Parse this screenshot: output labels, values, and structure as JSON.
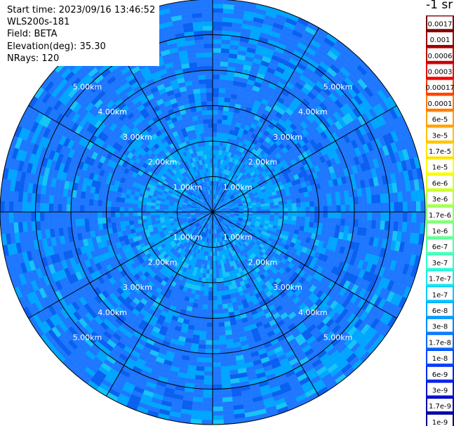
{
  "header": {
    "start_time": "Start time: 2023/09/16 13:46:52",
    "instrument": "WLS200s-181",
    "field": "Field: BETA",
    "elevation": "Elevation(deg): 35.30",
    "nrays": "NRays: 120"
  },
  "chart_data": {
    "type": "heatmap",
    "projection": "polar-ppi",
    "field": "BETA",
    "elevation_deg": 35.3,
    "nrays": 120,
    "range_ring_labels": [
      "1.00km",
      "2.00km",
      "3.00km",
      "4.00km",
      "5.00km"
    ],
    "range_rings_km": [
      1,
      2,
      3,
      4,
      5
    ],
    "max_range_km": 6,
    "spokes": 12,
    "colorbar": {
      "unit_label": "-1 sr",
      "ticks": [
        "0.0017",
        "0.001",
        "0.0006",
        "0.0003",
        "0.00017",
        "0.0001",
        "6e-5",
        "3e-5",
        "1.7e-5",
        "1e-5",
        "6e-6",
        "3e-6",
        "1.7e-6",
        "1e-6",
        "6e-7",
        "3e-7",
        "1.7e-7",
        "1e-7",
        "6e-8",
        "3e-8",
        "1.7e-8",
        "1e-8",
        "6e-9",
        "3e-9",
        "1.7e-9",
        "1e-9"
      ],
      "colors": [
        "#7a0000",
        "#9a0000",
        "#c40000",
        "#f00000",
        "#ff3a00",
        "#ff7a00",
        "#ffa000",
        "#ffc200",
        "#ffe000",
        "#fbff00",
        "#d8ff1e",
        "#b0ff4c",
        "#8cff70",
        "#6dff8c",
        "#4dffac",
        "#2effcc",
        "#17e8ec",
        "#00c8ff",
        "#00a6ff",
        "#0084ff",
        "#0064ff",
        "#0044ff",
        "#0028f0",
        "#0010d8",
        "#0000b0",
        "#000088"
      ]
    },
    "observed_color_band": [
      "#1e78ff",
      "#00a6ff",
      "#0a60f0",
      "#16c4f6"
    ]
  }
}
